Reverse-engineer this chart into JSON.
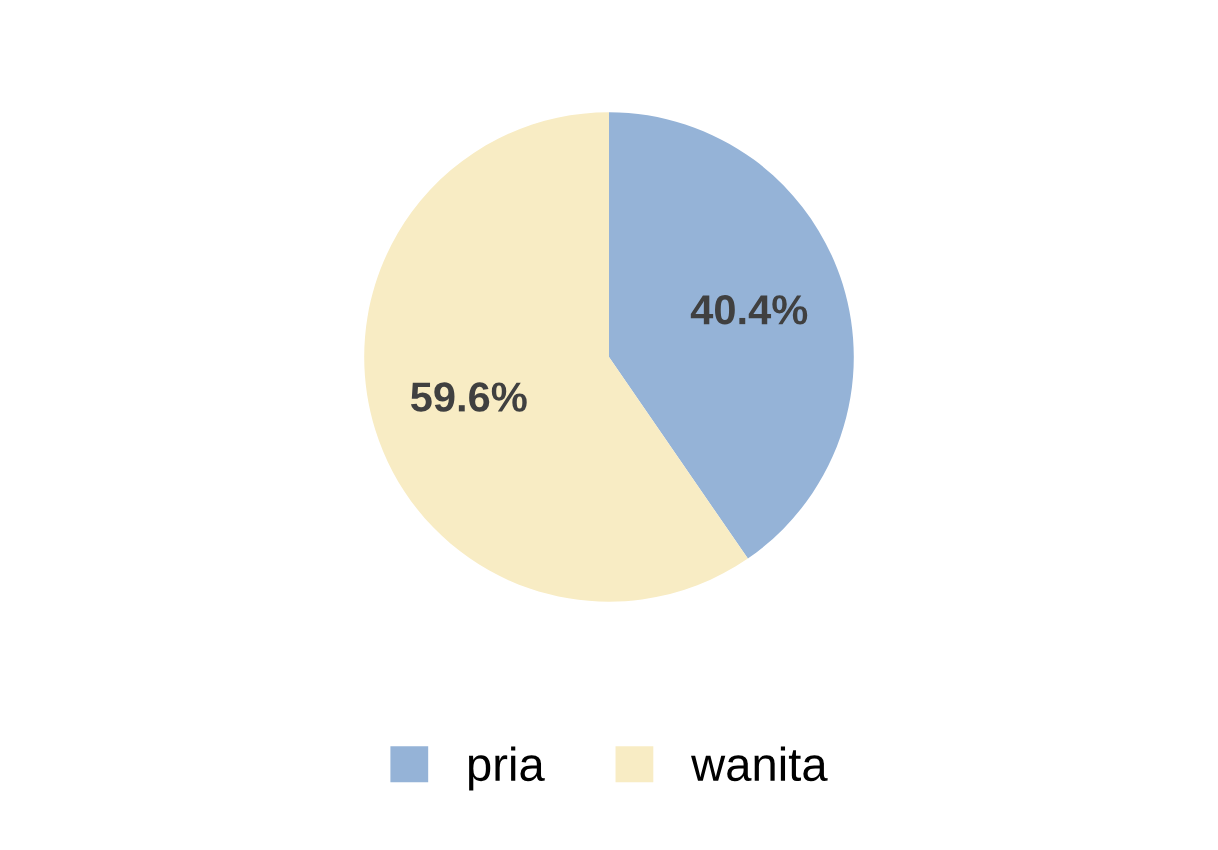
{
  "chart_data": {
    "type": "pie",
    "categories": [
      "pria",
      "wanita"
    ],
    "values": [
      40.4,
      59.6
    ],
    "colors": [
      "#95b3d7",
      "#f8ecc4"
    ],
    "value_labels": [
      "40.4%",
      "59.6%"
    ],
    "legend": "bottom"
  }
}
